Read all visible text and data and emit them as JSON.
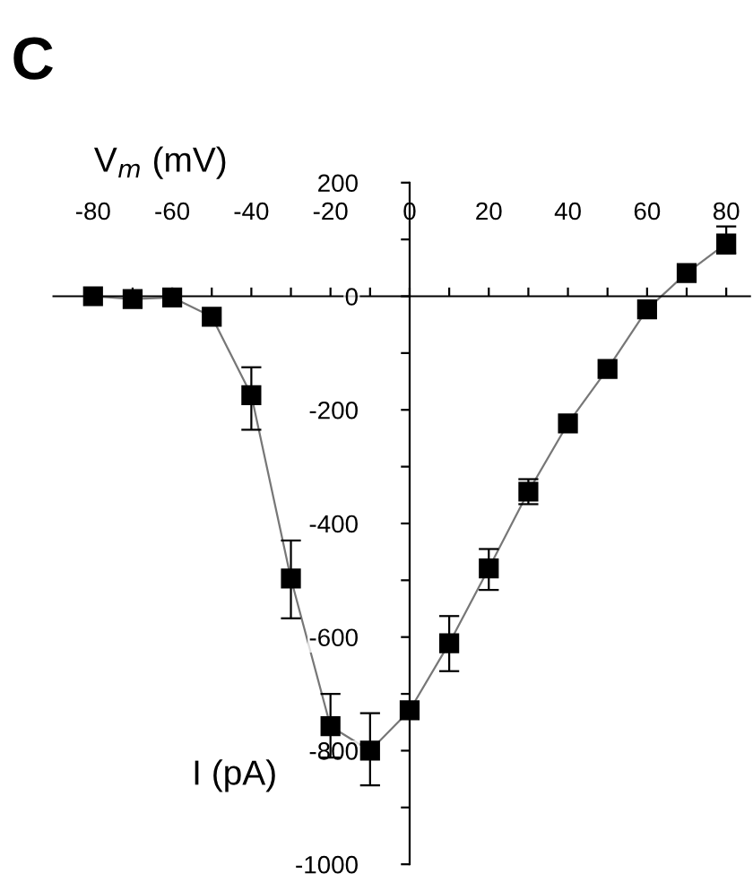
{
  "chart_data": {
    "type": "line",
    "annotations": [
      "C"
    ],
    "xlabel": "V$_{m}$ (mV)",
    "ylabel": "I (pA)",
    "x": [
      -80,
      -70,
      -60,
      -50,
      -40,
      -30,
      -20,
      -10,
      0,
      10,
      20,
      30,
      40,
      50,
      60,
      70,
      80
    ],
    "series": [
      {
        "color": "#000000",
        "values": [
          0,
          -5,
          -2,
          -36,
          -174,
          -497,
          -757,
          -800,
          -729,
          -611,
          -479,
          -344,
          -224,
          -128,
          -23,
          41,
          93
        ],
        "errors": [
          null,
          null,
          null,
          null,
          [
            -235,
            -125
          ],
          [
            -567,
            -430
          ],
          [
            -812,
            -700
          ],
          [
            -861,
            -734
          ],
          null,
          [
            -660,
            -563
          ],
          [
            -517,
            -445
          ],
          22,
          null,
          null,
          null,
          null,
          [
            75,
            123
          ]
        ]
      }
    ],
    "marker": "square",
    "line_style": "solid",
    "legend": false,
    "xlim": [
      -90,
      86
    ],
    "ylim": [
      -1000,
      200
    ],
    "xticks": [
      -80,
      {
        "value": -70,
        "label": null
      },
      -60,
      {
        "value": -50,
        "label": null
      },
      -40,
      {
        "value": -30,
        "label": null
      },
      -20,
      {
        "value": -10,
        "label": null
      },
      0,
      {
        "value": 10,
        "label": null
      },
      20,
      {
        "value": 30,
        "label": null
      },
      40,
      {
        "value": 50,
        "label": null
      },
      60,
      {
        "value": 70,
        "label": null
      },
      80
    ],
    "yticks": [
      200,
      {
        "value": 100,
        "label": null
      },
      0,
      {
        "value": -100,
        "label": null
      },
      -200,
      {
        "value": -300,
        "label": null
      },
      -400,
      {
        "value": -500,
        "label": null
      },
      -600,
      {
        "value": -700,
        "label": null
      },
      -800,
      {
        "value": -900,
        "label": null
      },
      -1000
    ]
  }
}
